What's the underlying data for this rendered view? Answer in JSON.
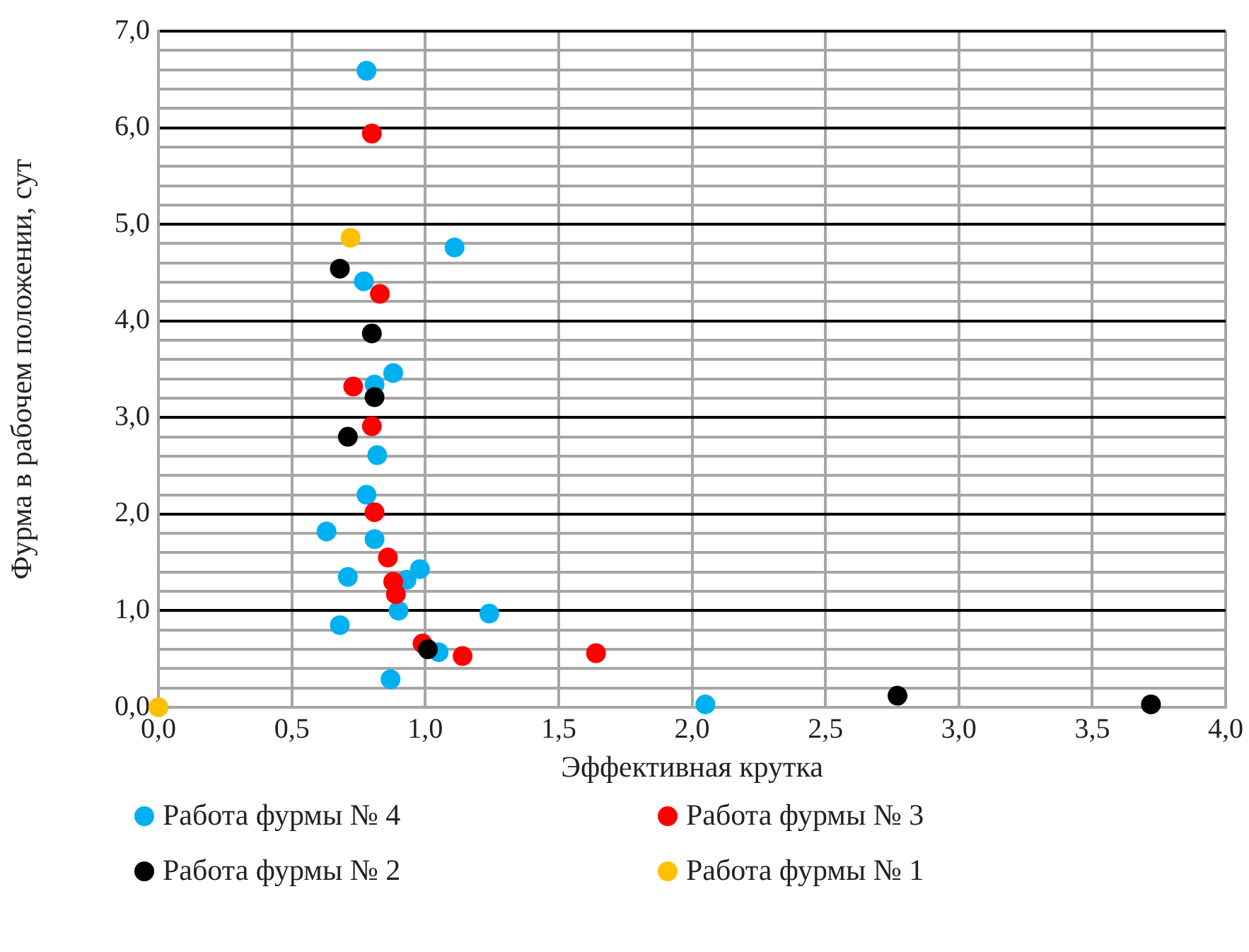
{
  "chart_data": {
    "type": "scatter",
    "xlabel": "Эффективная крутка",
    "ylabel": "Фурма в рабочем положении, сут",
    "xlim": [
      0,
      4
    ],
    "ylim": [
      0,
      7
    ],
    "xticks": [
      {
        "value": 0,
        "label": "0,0"
      },
      {
        "value": 0.5,
        "label": "0,5"
      },
      {
        "value": 1,
        "label": "1,0"
      },
      {
        "value": 1.5,
        "label": "1,5"
      },
      {
        "value": 2,
        "label": "2,0"
      },
      {
        "value": 2.5,
        "label": "2,5"
      },
      {
        "value": 3,
        "label": "3,0"
      },
      {
        "value": 3.5,
        "label": "3,5"
      },
      {
        "value": 4,
        "label": "4,0"
      }
    ],
    "yticks": [
      {
        "value": 0,
        "label": "0,0"
      },
      {
        "value": 0.2,
        "label": null
      },
      {
        "value": 0.4,
        "label": null
      },
      {
        "value": 0.6,
        "label": null
      },
      {
        "value": 0.8,
        "label": null
      },
      {
        "value": 1,
        "label": "1,0"
      },
      {
        "value": 1.2,
        "label": null
      },
      {
        "value": 1.4,
        "label": null
      },
      {
        "value": 1.6,
        "label": null
      },
      {
        "value": 1.8,
        "label": null
      },
      {
        "value": 2,
        "label": "2,0"
      },
      {
        "value": 2.2,
        "label": null
      },
      {
        "value": 2.4,
        "label": null
      },
      {
        "value": 2.6,
        "label": null
      },
      {
        "value": 2.8,
        "label": null
      },
      {
        "value": 3,
        "label": "3,0"
      },
      {
        "value": 3.2,
        "label": null
      },
      {
        "value": 3.4,
        "label": null
      },
      {
        "value": 3.6,
        "label": null
      },
      {
        "value": 3.8,
        "label": null
      },
      {
        "value": 4,
        "label": "4,0"
      },
      {
        "value": 4.2,
        "label": null
      },
      {
        "value": 4.4,
        "label": null
      },
      {
        "value": 4.6,
        "label": null
      },
      {
        "value": 4.8,
        "label": null
      },
      {
        "value": 5,
        "label": "5,0"
      },
      {
        "value": 5.2,
        "label": null
      },
      {
        "value": 5.4,
        "label": null
      },
      {
        "value": 5.6,
        "label": null
      },
      {
        "value": 5.8,
        "label": null
      },
      {
        "value": 6,
        "label": "6,0"
      },
      {
        "value": 6.2,
        "label": null
      },
      {
        "value": 6.4,
        "label": null
      },
      {
        "value": 6.6,
        "label": null
      },
      {
        "value": 6.8,
        "label": null
      },
      {
        "value": 7,
        "label": "7,0"
      }
    ],
    "grid": true,
    "legend": "bottom",
    "marker": "circle",
    "series": [
      {
        "name": "Работа фурмы № 4",
        "color": "#00b0f0",
        "x": [
          0.78,
          1.11,
          0.77,
          0.88,
          0.81,
          0.82,
          0.78,
          0.63,
          0.81,
          0.98,
          0.71,
          0.93,
          0.9,
          1.24,
          0.68,
          1.05,
          0.87,
          2.05
        ],
        "values": [
          6.59,
          4.76,
          4.41,
          3.46,
          3.34,
          2.61,
          2.2,
          1.82,
          1.74,
          1.43,
          1.35,
          1.32,
          1.0,
          0.97,
          0.85,
          0.57,
          0.29,
          0.03
        ]
      },
      {
        "name": "Работа фурмы № 3",
        "color": "#ff0000",
        "x": [
          0.8,
          0.83,
          0.73,
          0.8,
          0.81,
          0.86,
          0.88,
          0.89,
          0.99,
          1.14,
          1.64
        ],
        "values": [
          5.94,
          4.28,
          3.32,
          2.91,
          2.02,
          1.55,
          1.3,
          1.17,
          0.66,
          0.53,
          0.56
        ]
      },
      {
        "name": "Работа фурмы № 2",
        "color": "#000000",
        "x": [
          0.68,
          0.8,
          0.81,
          0.71,
          1.01,
          2.77,
          3.72
        ],
        "values": [
          4.54,
          3.87,
          3.21,
          2.8,
          0.6,
          0.12,
          0.03
        ]
      },
      {
        "name": "Работа фурмы № 1",
        "color": "#ffc000",
        "x": [
          0.72,
          0
        ],
        "values": [
          4.86,
          0
        ]
      }
    ]
  }
}
